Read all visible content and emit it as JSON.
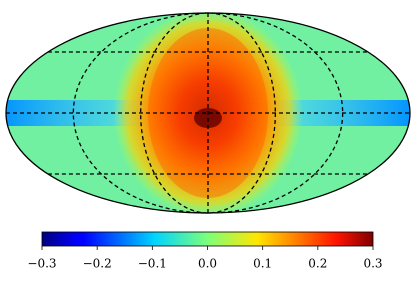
{
  "chart_data": {
    "type": "mollweide",
    "colormap": "jet",
    "clim": [
      -0.3,
      0.3
    ],
    "cticks": [
      {
        "value": -0.3,
        "label": "−0.3"
      },
      {
        "value": -0.2,
        "label": "−0.2"
      },
      {
        "value": -0.1,
        "label": "−0.1"
      },
      {
        "value": 0,
        "label": "0.0"
      },
      0.1,
      0.2,
      0.3
    ],
    "graticule": true
  }
}
